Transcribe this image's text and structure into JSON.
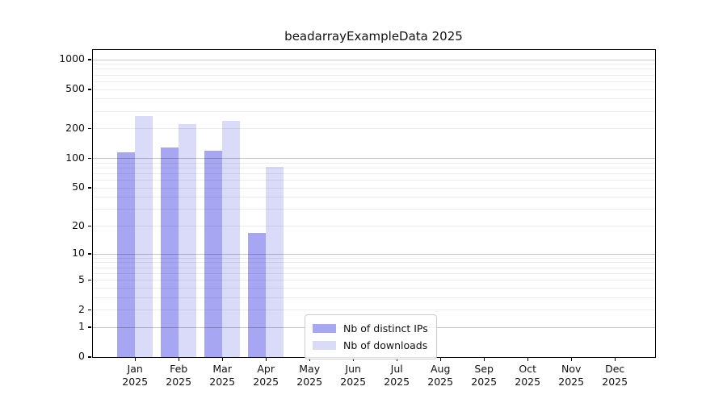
{
  "title": "beadarrayExampleData 2025",
  "chart_data": {
    "type": "bar",
    "title": "beadarrayExampleData 2025",
    "scale": "log1p",
    "grid": "horizontal",
    "categories": [
      "Jan",
      "Feb",
      "Mar",
      "Apr",
      "May",
      "Jun",
      "Jul",
      "Aug",
      "Sep",
      "Oct",
      "Nov",
      "Dec"
    ],
    "category_year": "2025",
    "series": [
      {
        "name": "Nb of distinct IPs",
        "color": "#a6a6f2",
        "values": [
          115,
          130,
          120,
          17,
          null,
          null,
          null,
          null,
          null,
          null,
          null,
          null
        ]
      },
      {
        "name": "Nb of downloads",
        "color": "#dadaf9",
        "values": [
          270,
          222,
          238,
          82,
          null,
          null,
          null,
          null,
          null,
          null,
          null,
          null
        ]
      }
    ],
    "yticks": [
      0,
      1,
      2,
      5,
      10,
      20,
      50,
      100,
      200,
      500,
      1000
    ],
    "ylim": [
      0,
      1275
    ],
    "legend_position": "lower center-left inside plot",
    "colors": {
      "axis": "#000000",
      "grid_minor": "#ececec",
      "grid_major": "#c7c7c7",
      "background": "#ffffff"
    }
  }
}
